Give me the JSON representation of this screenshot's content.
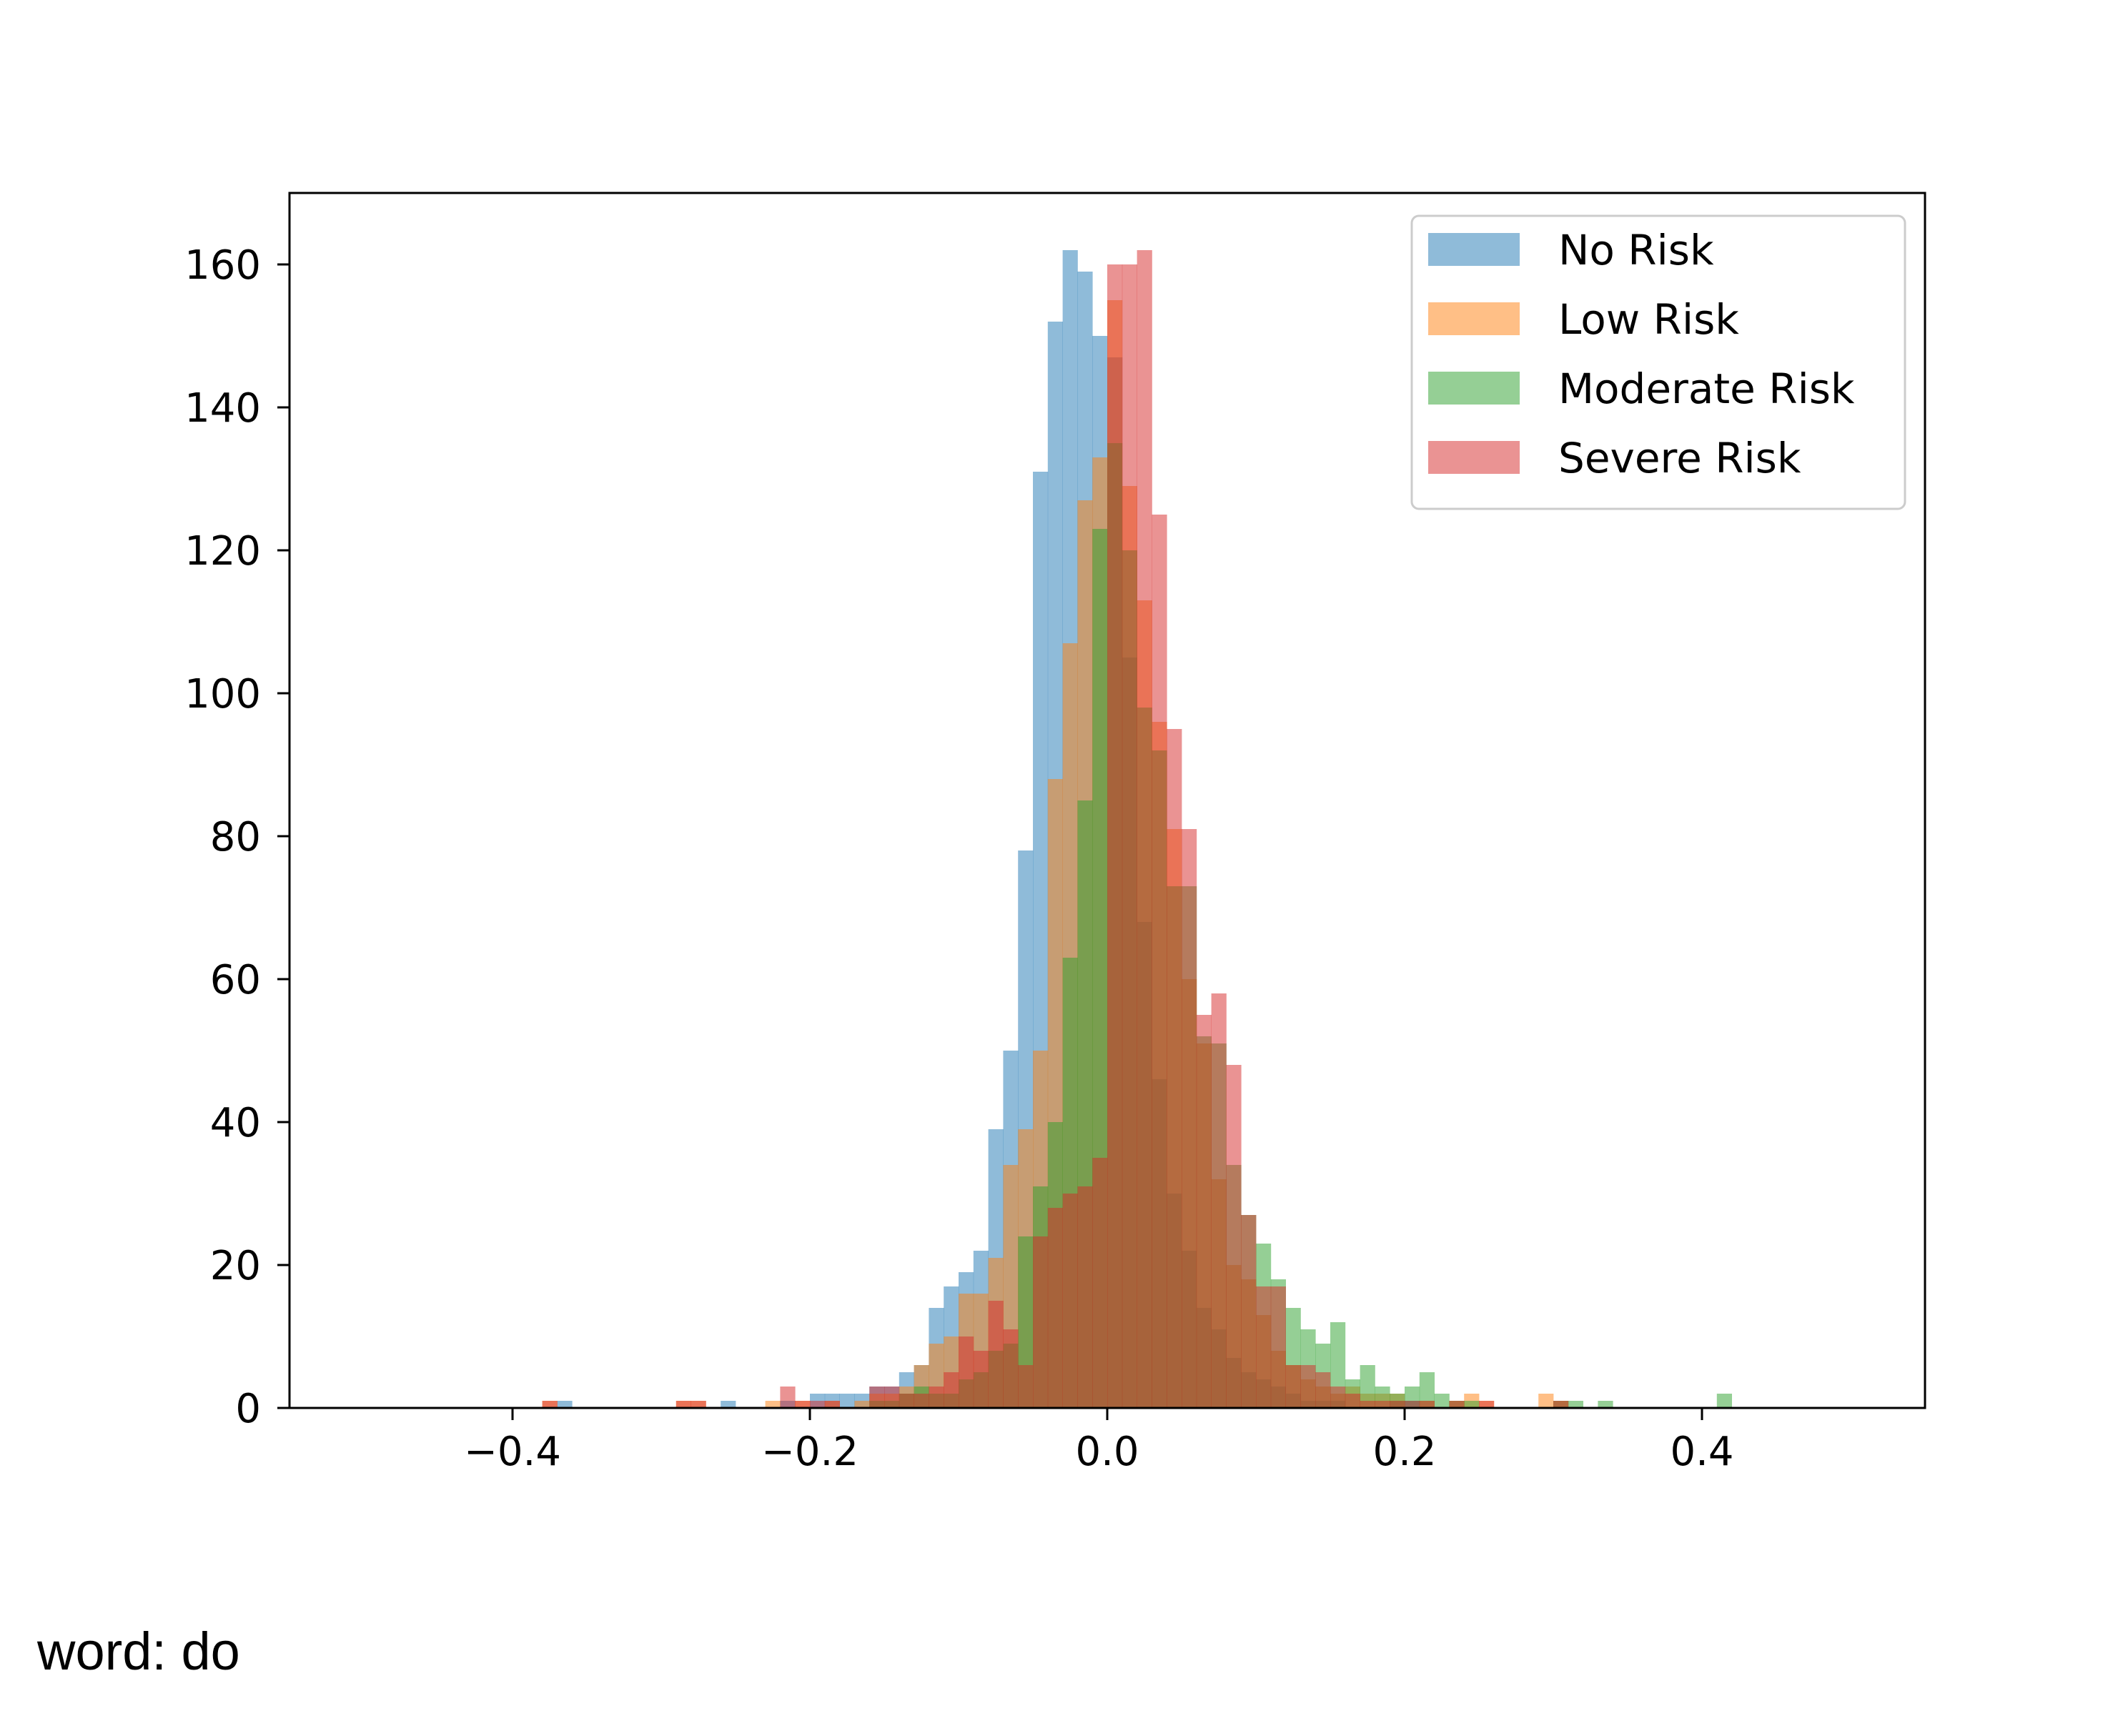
{
  "caption": "word: do",
  "chart_data": {
    "type": "histogram",
    "title": "",
    "xlabel": "",
    "ylabel": "",
    "xlim": [
      -0.55,
      0.55
    ],
    "ylim": [
      0,
      170
    ],
    "bin_width": 0.01,
    "overlay_alpha": 0.5,
    "grid": false,
    "legend_position": "top-right",
    "x_ticks": [
      -0.4,
      -0.2,
      0.0,
      0.2,
      0.4
    ],
    "x_tick_labels": [
      "−0.4",
      "−0.2",
      "0.0",
      "0.2",
      "0.4"
    ],
    "y_ticks": [
      0,
      20,
      40,
      60,
      80,
      100,
      120,
      140,
      160
    ],
    "y_tick_labels": [
      "0",
      "20",
      "40",
      "60",
      "80",
      "100",
      "120",
      "140",
      "160"
    ],
    "series": [
      {
        "name": "No Risk",
        "color": "#1f77b4",
        "bins": [
          {
            "x": -0.37,
            "count": 1
          },
          {
            "x": -0.26,
            "count": 1
          },
          {
            "x": -0.22,
            "count": 1
          },
          {
            "x": -0.2,
            "count": 2
          },
          {
            "x": -0.19,
            "count": 2
          },
          {
            "x": -0.18,
            "count": 2
          },
          {
            "x": -0.17,
            "count": 2
          },
          {
            "x": -0.16,
            "count": 3
          },
          {
            "x": -0.15,
            "count": 3
          },
          {
            "x": -0.14,
            "count": 5
          },
          {
            "x": -0.13,
            "count": 6
          },
          {
            "x": -0.12,
            "count": 14
          },
          {
            "x": -0.11,
            "count": 17
          },
          {
            "x": -0.1,
            "count": 19
          },
          {
            "x": -0.09,
            "count": 22
          },
          {
            "x": -0.08,
            "count": 39
          },
          {
            "x": -0.07,
            "count": 50
          },
          {
            "x": -0.06,
            "count": 78
          },
          {
            "x": -0.05,
            "count": 131
          },
          {
            "x": -0.04,
            "count": 152
          },
          {
            "x": -0.03,
            "count": 162
          },
          {
            "x": -0.02,
            "count": 159
          },
          {
            "x": -0.01,
            "count": 150
          },
          {
            "x": 0.0,
            "count": 147
          },
          {
            "x": 0.01,
            "count": 105
          },
          {
            "x": 0.02,
            "count": 68
          },
          {
            "x": 0.03,
            "count": 46
          },
          {
            "x": 0.04,
            "count": 30
          },
          {
            "x": 0.05,
            "count": 22
          },
          {
            "x": 0.06,
            "count": 14
          },
          {
            "x": 0.07,
            "count": 11
          },
          {
            "x": 0.08,
            "count": 7
          },
          {
            "x": 0.09,
            "count": 5
          },
          {
            "x": 0.1,
            "count": 4
          },
          {
            "x": 0.11,
            "count": 3
          },
          {
            "x": 0.12,
            "count": 2
          },
          {
            "x": 0.13,
            "count": 1
          },
          {
            "x": 0.14,
            "count": 1
          },
          {
            "x": 0.15,
            "count": 1
          },
          {
            "x": 0.19,
            "count": 1
          },
          {
            "x": 0.2,
            "count": 1
          }
        ]
      },
      {
        "name": "Low Risk",
        "color": "#ff7f0e",
        "bins": [
          {
            "x": -0.38,
            "count": 1
          },
          {
            "x": -0.29,
            "count": 1
          },
          {
            "x": -0.28,
            "count": 1
          },
          {
            "x": -0.23,
            "count": 1
          },
          {
            "x": -0.21,
            "count": 1
          },
          {
            "x": -0.19,
            "count": 1
          },
          {
            "x": -0.17,
            "count": 1
          },
          {
            "x": -0.16,
            "count": 2
          },
          {
            "x": -0.15,
            "count": 2
          },
          {
            "x": -0.14,
            "count": 3
          },
          {
            "x": -0.13,
            "count": 6
          },
          {
            "x": -0.12,
            "count": 9
          },
          {
            "x": -0.11,
            "count": 10
          },
          {
            "x": -0.1,
            "count": 16
          },
          {
            "x": -0.09,
            "count": 16
          },
          {
            "x": -0.08,
            "count": 21
          },
          {
            "x": -0.07,
            "count": 34
          },
          {
            "x": -0.06,
            "count": 39
          },
          {
            "x": -0.05,
            "count": 50
          },
          {
            "x": -0.04,
            "count": 88
          },
          {
            "x": -0.03,
            "count": 107
          },
          {
            "x": -0.02,
            "count": 127
          },
          {
            "x": -0.01,
            "count": 133
          },
          {
            "x": 0.0,
            "count": 155
          },
          {
            "x": 0.01,
            "count": 129
          },
          {
            "x": 0.02,
            "count": 113
          },
          {
            "x": 0.03,
            "count": 96
          },
          {
            "x": 0.04,
            "count": 81
          },
          {
            "x": 0.05,
            "count": 60
          },
          {
            "x": 0.06,
            "count": 51
          },
          {
            "x": 0.07,
            "count": 32
          },
          {
            "x": 0.08,
            "count": 20
          },
          {
            "x": 0.09,
            "count": 18
          },
          {
            "x": 0.1,
            "count": 13
          },
          {
            "x": 0.11,
            "count": 8
          },
          {
            "x": 0.12,
            "count": 6
          },
          {
            "x": 0.13,
            "count": 4
          },
          {
            "x": 0.14,
            "count": 3
          },
          {
            "x": 0.15,
            "count": 2
          },
          {
            "x": 0.16,
            "count": 3
          },
          {
            "x": 0.17,
            "count": 2
          },
          {
            "x": 0.18,
            "count": 2
          },
          {
            "x": 0.19,
            "count": 2
          },
          {
            "x": 0.21,
            "count": 1
          },
          {
            "x": 0.23,
            "count": 1
          },
          {
            "x": 0.24,
            "count": 2
          },
          {
            "x": 0.25,
            "count": 1
          },
          {
            "x": 0.29,
            "count": 2
          },
          {
            "x": 0.3,
            "count": 1
          }
        ]
      },
      {
        "name": "Moderate Risk",
        "color": "#2ca02c",
        "bins": [
          {
            "x": -0.16,
            "count": 1
          },
          {
            "x": -0.15,
            "count": 1
          },
          {
            "x": -0.14,
            "count": 2
          },
          {
            "x": -0.13,
            "count": 3
          },
          {
            "x": -0.12,
            "count": 2
          },
          {
            "x": -0.11,
            "count": 2
          },
          {
            "x": -0.1,
            "count": 4
          },
          {
            "x": -0.09,
            "count": 5
          },
          {
            "x": -0.08,
            "count": 8
          },
          {
            "x": -0.07,
            "count": 9
          },
          {
            "x": -0.06,
            "count": 24
          },
          {
            "x": -0.05,
            "count": 31
          },
          {
            "x": -0.04,
            "count": 40
          },
          {
            "x": -0.03,
            "count": 63
          },
          {
            "x": -0.02,
            "count": 85
          },
          {
            "x": -0.01,
            "count": 123
          },
          {
            "x": 0.0,
            "count": 135
          },
          {
            "x": 0.01,
            "count": 120
          },
          {
            "x": 0.02,
            "count": 98
          },
          {
            "x": 0.03,
            "count": 92
          },
          {
            "x": 0.04,
            "count": 73
          },
          {
            "x": 0.05,
            "count": 73
          },
          {
            "x": 0.06,
            "count": 52
          },
          {
            "x": 0.07,
            "count": 51
          },
          {
            "x": 0.08,
            "count": 34
          },
          {
            "x": 0.09,
            "count": 27
          },
          {
            "x": 0.1,
            "count": 23
          },
          {
            "x": 0.11,
            "count": 18
          },
          {
            "x": 0.12,
            "count": 14
          },
          {
            "x": 0.13,
            "count": 11
          },
          {
            "x": 0.14,
            "count": 9
          },
          {
            "x": 0.15,
            "count": 12
          },
          {
            "x": 0.16,
            "count": 4
          },
          {
            "x": 0.17,
            "count": 6
          },
          {
            "x": 0.18,
            "count": 3
          },
          {
            "x": 0.19,
            "count": 2
          },
          {
            "x": 0.2,
            "count": 3
          },
          {
            "x": 0.21,
            "count": 5
          },
          {
            "x": 0.22,
            "count": 2
          },
          {
            "x": 0.23,
            "count": 1
          },
          {
            "x": 0.24,
            "count": 1
          },
          {
            "x": 0.3,
            "count": 1
          },
          {
            "x": 0.31,
            "count": 1
          },
          {
            "x": 0.33,
            "count": 1
          },
          {
            "x": 0.41,
            "count": 2
          }
        ]
      },
      {
        "name": "Severe Risk",
        "color": "#d62728",
        "bins": [
          {
            "x": -0.38,
            "count": 1
          },
          {
            "x": -0.29,
            "count": 1
          },
          {
            "x": -0.28,
            "count": 1
          },
          {
            "x": -0.22,
            "count": 3
          },
          {
            "x": -0.21,
            "count": 1
          },
          {
            "x": -0.2,
            "count": 1
          },
          {
            "x": -0.19,
            "count": 1
          },
          {
            "x": -0.16,
            "count": 3
          },
          {
            "x": -0.15,
            "count": 3
          },
          {
            "x": -0.14,
            "count": 2
          },
          {
            "x": -0.13,
            "count": 2
          },
          {
            "x": -0.12,
            "count": 3
          },
          {
            "x": -0.11,
            "count": 5
          },
          {
            "x": -0.1,
            "count": 10
          },
          {
            "x": -0.09,
            "count": 8
          },
          {
            "x": -0.08,
            "count": 15
          },
          {
            "x": -0.07,
            "count": 11
          },
          {
            "x": -0.06,
            "count": 6
          },
          {
            "x": -0.05,
            "count": 24
          },
          {
            "x": -0.04,
            "count": 28
          },
          {
            "x": -0.03,
            "count": 30
          },
          {
            "x": -0.02,
            "count": 31
          },
          {
            "x": -0.01,
            "count": 35
          },
          {
            "x": 0.0,
            "count": 160
          },
          {
            "x": 0.01,
            "count": 160
          },
          {
            "x": 0.02,
            "count": 162
          },
          {
            "x": 0.03,
            "count": 125
          },
          {
            "x": 0.04,
            "count": 95
          },
          {
            "x": 0.05,
            "count": 81
          },
          {
            "x": 0.06,
            "count": 55
          },
          {
            "x": 0.07,
            "count": 58
          },
          {
            "x": 0.08,
            "count": 48
          },
          {
            "x": 0.09,
            "count": 27
          },
          {
            "x": 0.1,
            "count": 17
          },
          {
            "x": 0.11,
            "count": 17
          },
          {
            "x": 0.12,
            "count": 6
          },
          {
            "x": 0.13,
            "count": 6
          },
          {
            "x": 0.14,
            "count": 5
          },
          {
            "x": 0.15,
            "count": 3
          },
          {
            "x": 0.16,
            "count": 2
          },
          {
            "x": 0.17,
            "count": 1
          },
          {
            "x": 0.18,
            "count": 1
          },
          {
            "x": 0.19,
            "count": 1
          },
          {
            "x": 0.2,
            "count": 1
          },
          {
            "x": 0.21,
            "count": 1
          },
          {
            "x": 0.23,
            "count": 1
          },
          {
            "x": 0.25,
            "count": 1
          },
          {
            "x": 0.3,
            "count": 1
          }
        ]
      }
    ]
  }
}
